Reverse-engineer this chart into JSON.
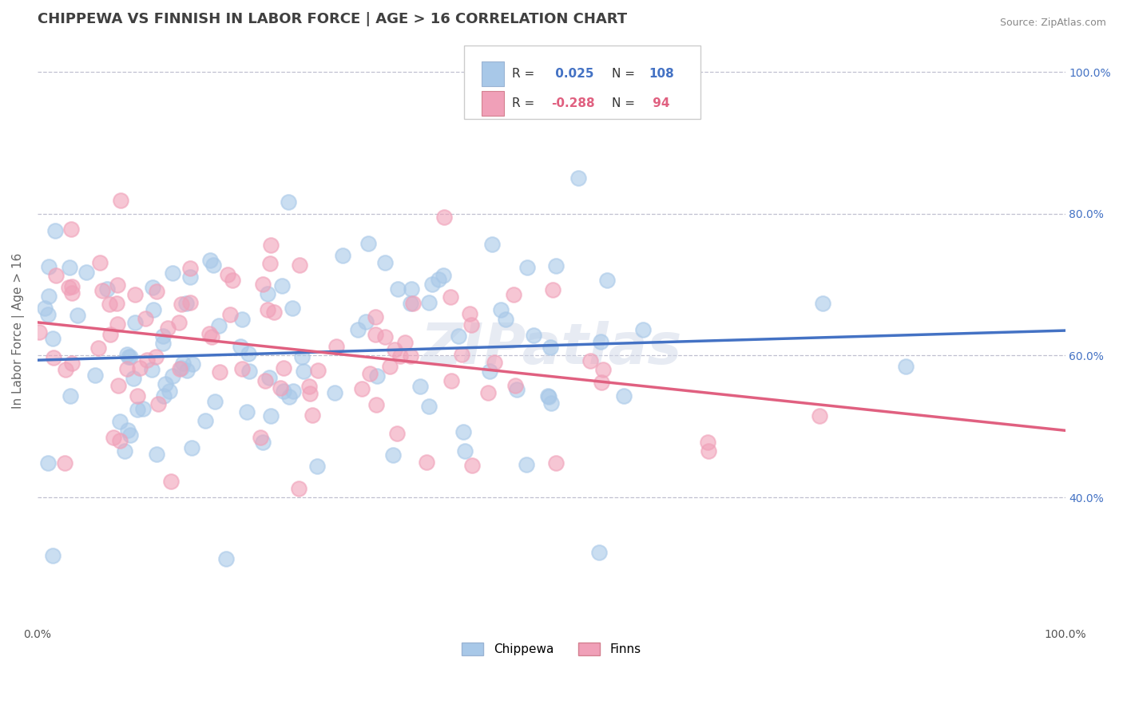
{
  "title": "CHIPPEWA VS FINNISH IN LABOR FORCE | AGE > 16 CORRELATION CHART",
  "source": "Source: ZipAtlas.com",
  "ylabel": "In Labor Force | Age > 16",
  "xlim": [
    0.0,
    1.0
  ],
  "ylim": [
    0.22,
    1.05
  ],
  "chippewa_R": 0.025,
  "chippewa_N": 108,
  "finns_R": -0.288,
  "finns_N": 94,
  "chippewa_color": "#a8c8e8",
  "finns_color": "#f0a0b8",
  "chippewa_line_color": "#4472c4",
  "finns_line_color": "#e06080",
  "bg_color": "#ffffff",
  "grid_color": "#c0c0d0",
  "title_color": "#404040",
  "ytick_vals": [
    0.4,
    0.6,
    0.8,
    1.0
  ],
  "watermark": "ZIPatlas",
  "legend_R1": "R =",
  "legend_N1": "N =",
  "legend_val1": "0.025",
  "legend_n1": "108",
  "legend_val2": "-0.288",
  "legend_n2": "94",
  "bottom_labels": [
    "Chippewa",
    "Finns"
  ]
}
